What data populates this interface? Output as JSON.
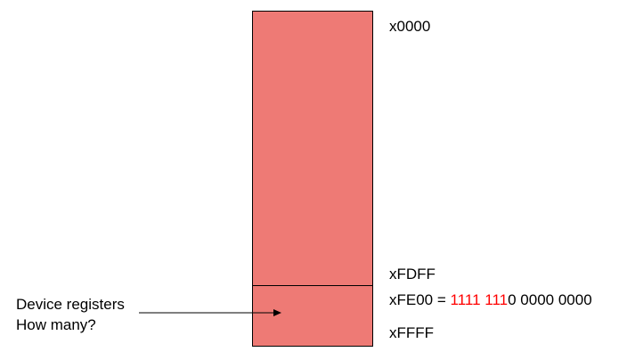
{
  "memory_map": {
    "block_color": "#ee7a75",
    "highlight_color": "#ff0000",
    "top_address": "x0000",
    "boundary_address": "xFDFF",
    "device_start_address": "xFE00",
    "equals": " = ",
    "binary_highlight": "1111 111",
    "binary_rest": "0 0000 0000",
    "bottom_address": "xFFFF"
  },
  "annotation": {
    "line1": "Device registers",
    "line2": "How many?"
  }
}
